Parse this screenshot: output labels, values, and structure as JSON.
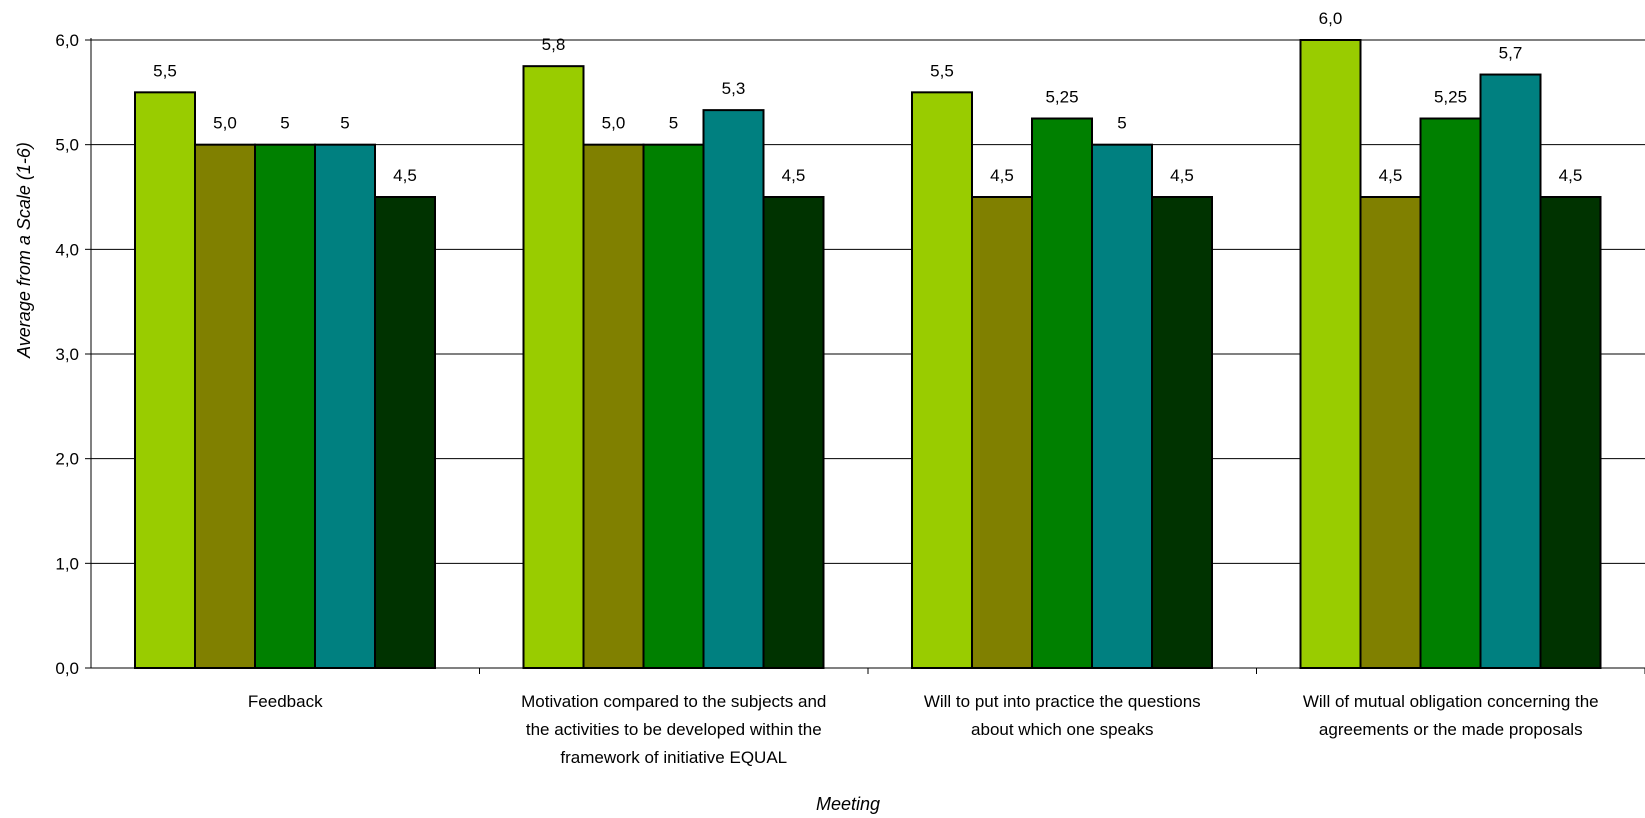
{
  "chart_data": {
    "type": "bar",
    "xlabel": "Meeting",
    "ylabel": "Average from a Scale (1-6)",
    "ylim": [
      0,
      6
    ],
    "yticks": [
      "0,0",
      "1,0",
      "2,0",
      "3,0",
      "4,0",
      "5,0",
      "6,0"
    ],
    "grid": true,
    "legend": "none",
    "categories": [
      [
        "Feedback"
      ],
      [
        "Motivation compared to the subjects and",
        "the activities to be developed within the",
        "framework of initiative EQUAL"
      ],
      [
        "Will to put into practice the questions",
        "about which one speaks"
      ],
      [
        "Will of mutual obligation concerning the",
        "agreements or the made proposals"
      ]
    ],
    "series": [
      {
        "color": "#99cc00",
        "values": [
          5.5,
          5.75,
          5.5,
          6.0
        ],
        "labels": [
          "5,5",
          "5,8",
          "5,5",
          "6,0"
        ]
      },
      {
        "color": "#808000",
        "values": [
          5.0,
          5.0,
          4.5,
          4.5
        ],
        "labels": [
          "5,0",
          "5,0",
          "4,5",
          "4,5"
        ]
      },
      {
        "color": "#008000",
        "values": [
          5.0,
          5.0,
          5.25,
          5.25
        ],
        "labels": [
          "5",
          "5",
          "5,25",
          "5,25"
        ]
      },
      {
        "color": "#008080",
        "values": [
          5.0,
          5.33,
          5.0,
          5.67
        ],
        "labels": [
          "5",
          "5,3",
          "5",
          "5,7"
        ]
      },
      {
        "color": "#003300",
        "values": [
          4.5,
          4.5,
          4.5,
          4.5
        ],
        "labels": [
          "4,5",
          "4,5",
          "4,5",
          "4,5"
        ]
      }
    ]
  }
}
